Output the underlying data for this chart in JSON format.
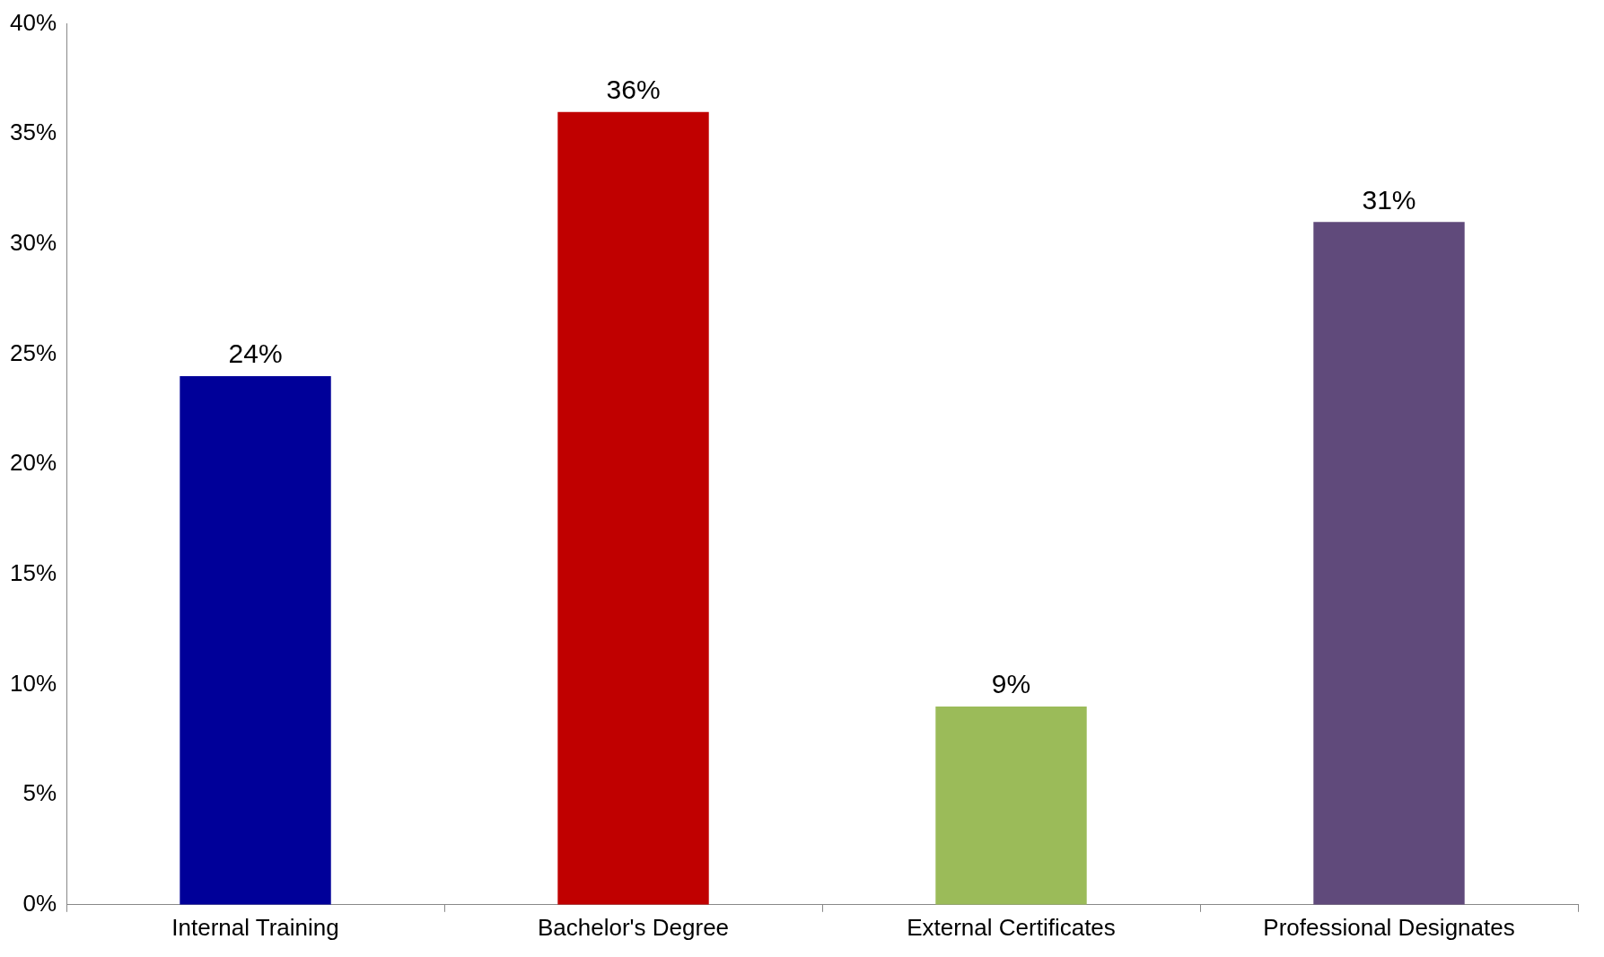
{
  "chart_data": {
    "type": "bar",
    "categories": [
      "Internal Training",
      "Bachelor's Degree",
      "External Certificates",
      "Professional Designates"
    ],
    "values": [
      24,
      36,
      9,
      31
    ],
    "colors": [
      "#000099",
      "#c00000",
      "#9bbb59",
      "#604a7b"
    ],
    "value_labels": [
      "24%",
      "36%",
      "9%",
      "31%"
    ],
    "ylim": [
      0,
      40
    ],
    "yticks": [
      {
        "value": 0,
        "label": "0%"
      },
      {
        "value": 5,
        "label": "5%"
      },
      {
        "value": 10,
        "label": "10%"
      },
      {
        "value": 15,
        "label": "15%"
      },
      {
        "value": 20,
        "label": "20%"
      },
      {
        "value": 25,
        "label": "25%"
      },
      {
        "value": 30,
        "label": "30%"
      },
      {
        "value": 35,
        "label": "35%"
      },
      {
        "value": 40,
        "label": "40%"
      }
    ],
    "grid": false,
    "legend": false
  }
}
